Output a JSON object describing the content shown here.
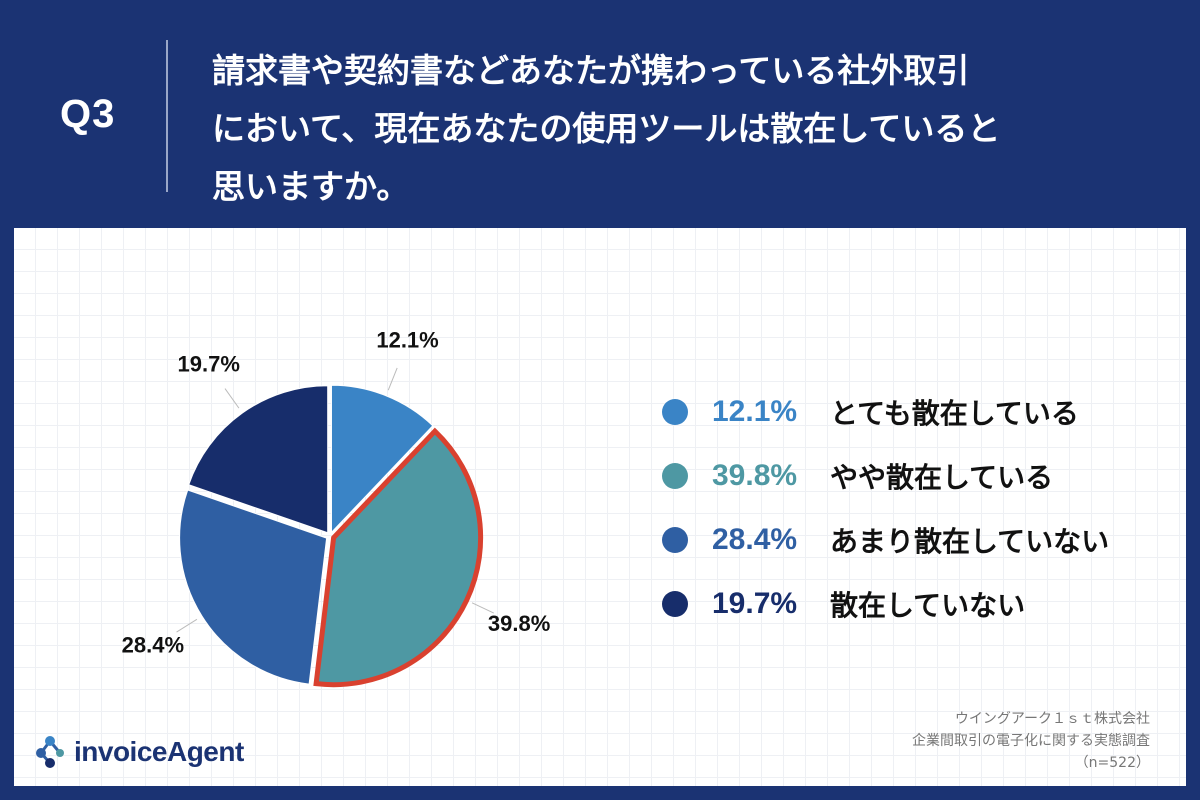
{
  "header": {
    "question_number": "Q3",
    "question_lines": [
      "請求書や契約書などあなたが携わっている社外取引",
      "において、現在あなたの使用ツールは散在していると",
      "思いますか。"
    ]
  },
  "chart_data": {
    "type": "pie",
    "labels": [
      "とても散在している",
      "やや散在している",
      "あまり散在していない",
      "散在していない"
    ],
    "values": [
      12.1,
      39.8,
      28.4,
      19.7
    ],
    "value_labels": [
      "12.1%",
      "39.8%",
      "28.4%",
      "19.7%"
    ],
    "colors": [
      "#3a84c6",
      "#4e98a3",
      "#2f5fa3",
      "#172d6b"
    ],
    "highlighted": "やや散在している",
    "highlight_color": "#d9412f",
    "legend_placement": "right"
  },
  "footer": {
    "brand": "invoiceAgent",
    "source_lines": [
      "ウイングアーク１ｓｔ株式会社",
      "企業間取引の電子化に関する実態調査",
      "（n=522）"
    ]
  },
  "colors": {
    "background": "#1b3373",
    "panel": "#ffffff",
    "logo_dots": [
      "#3a84c6",
      "#2f5fa3",
      "#172d6b",
      "#4e98a3"
    ]
  }
}
